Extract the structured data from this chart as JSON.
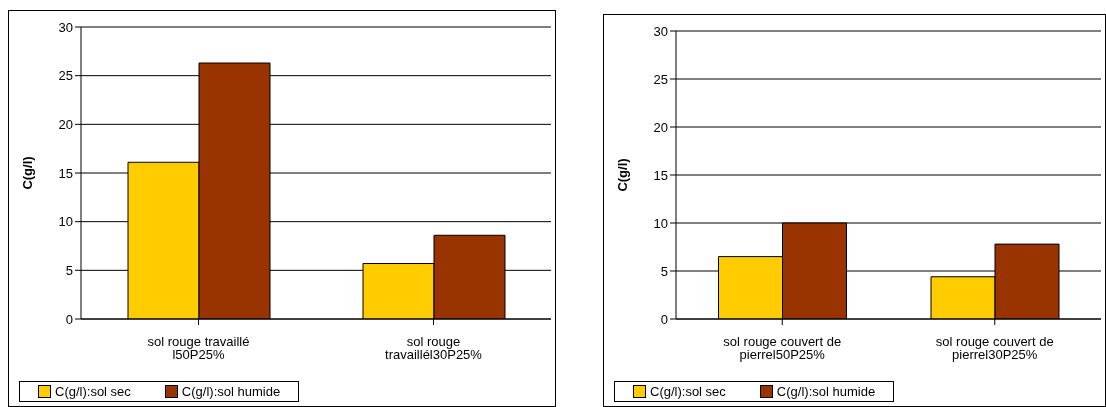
{
  "chart_data": [
    {
      "type": "bar",
      "ylabel": "C(g/l)",
      "categories": [
        "sol rouge travaillé l50P25%",
        "sol rouge travaillél30P25%"
      ],
      "series": [
        {
          "name": "C(g/l):sol sec",
          "color": "#ffcc00",
          "values": [
            16.1,
            5.7
          ]
        },
        {
          "name": "C(g/l):sol humide",
          "color": "#993300",
          "values": [
            26.3,
            8.6
          ]
        }
      ],
      "ylim": [
        0,
        30
      ],
      "yticks": [
        0,
        5,
        10,
        15,
        20,
        25,
        30
      ],
      "grid": "y",
      "legend": "bottom"
    },
    {
      "type": "bar",
      "ylabel": "C(g/l)",
      "categories": [
        "sol rouge couvert de pierrel50P25%",
        "sol rouge couvert de pierrel30P25%"
      ],
      "series": [
        {
          "name": "C(g/l):sol sec",
          "color": "#ffcc00",
          "values": [
            6.5,
            4.4
          ]
        },
        {
          "name": "C(g/l):sol humide",
          "color": "#993300",
          "values": [
            10.0,
            7.8
          ]
        }
      ],
      "ylim": [
        0,
        30
      ],
      "yticks": [
        0,
        5,
        10,
        15,
        20,
        25,
        30
      ],
      "grid": "y",
      "legend": "bottom"
    }
  ]
}
